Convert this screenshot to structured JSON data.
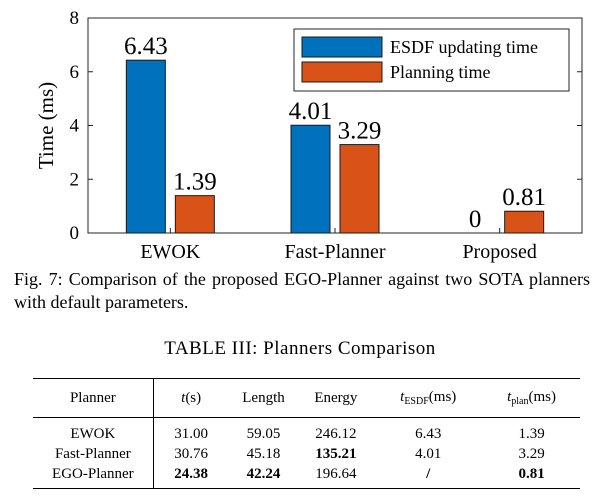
{
  "chart_data": {
    "type": "bar",
    "categories": [
      "EWOK",
      "Fast-Planner",
      "Proposed"
    ],
    "series": [
      {
        "name": "ESDF updating time",
        "values": [
          6.43,
          4.01,
          0
        ],
        "labels": [
          "6.43",
          "4.01",
          "0"
        ],
        "color": "#0072BD"
      },
      {
        "name": "Planning time",
        "values": [
          1.39,
          3.29,
          0.81
        ],
        "labels": [
          "1.39",
          "3.29",
          "0.81"
        ],
        "color": "#D95319"
      }
    ],
    "ylabel": "Time (ms)",
    "ylim": [
      0,
      8
    ],
    "yticks": [
      "0",
      "2",
      "4",
      "6",
      "8"
    ],
    "grid": false,
    "legend": "top-right"
  },
  "caption": "Fig. 7: Comparison of the proposed EGO-Planner against two SOTA planners with default parameters.",
  "table": {
    "title": "TABLE III: Planners Comparison",
    "headers": {
      "planner": "Planner",
      "t_var": "t",
      "t_unit": "(s)",
      "length": "Length",
      "energy": "Energy",
      "tesdf_var": "t",
      "tesdf_sub": "ESDF",
      "tesdf_unit": "(ms)",
      "tplan_var": "t",
      "tplan_sub": "plan",
      "tplan_unit": "(ms)"
    },
    "rows": [
      {
        "planner": "EWOK",
        "t": "31.00",
        "length": "59.05",
        "energy": "246.12",
        "tesdf": "6.43",
        "tplan": "1.39"
      },
      {
        "planner": "Fast-Planner",
        "t": "30.76",
        "length": "45.18",
        "energy": "135.21",
        "tesdf": "4.01",
        "tplan": "3.29"
      },
      {
        "planner": "EGO-Planner",
        "t": "24.38",
        "length": "42.24",
        "energy": "196.64",
        "tesdf": "/",
        "tplan": "0.81"
      }
    ]
  }
}
